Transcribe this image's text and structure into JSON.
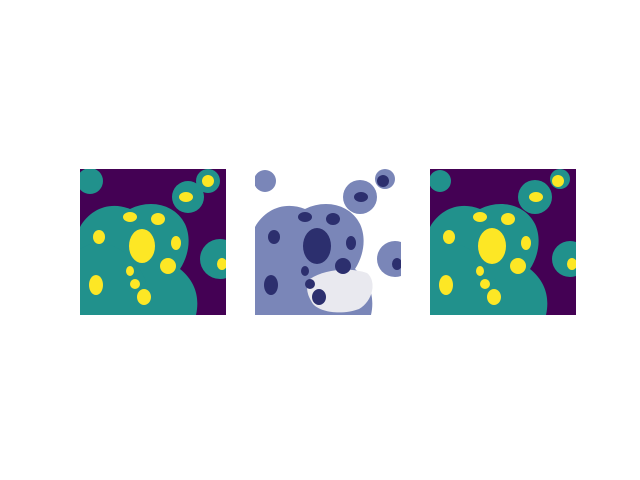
{
  "figure": {
    "panels": [
      {
        "name": "ground-truth-segmentation-mask",
        "kind": "label-mask"
      },
      {
        "name": "cytology-microscopy-image",
        "kind": "microscopy"
      },
      {
        "name": "predicted-segmentation-mask",
        "kind": "label-mask"
      }
    ]
  },
  "colors": {
    "background_class": "#440154",
    "cytoplasm_class": "#21918c",
    "nucleus_class": "#fde725",
    "slide_background": "#ffffff",
    "cell_stain": "#7a86b8",
    "nucleus_stain": "#2c2f6e",
    "vacuole": "#e9e9ef"
  }
}
